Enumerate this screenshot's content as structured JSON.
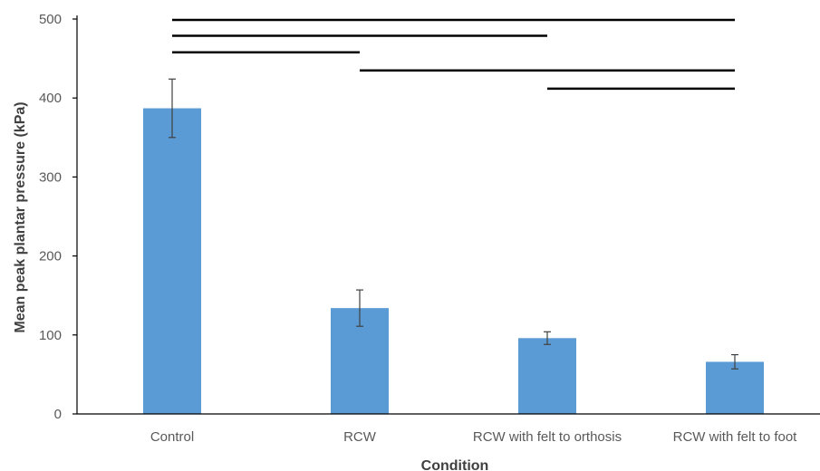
{
  "chart_data": {
    "type": "bar",
    "title": "",
    "xlabel": "Condition",
    "ylabel": "Mean peak plantar pressure (kPa)",
    "ylim": [
      0,
      500
    ],
    "yticks": [
      0,
      100,
      200,
      300,
      400,
      500
    ],
    "categories": [
      "Control",
      "RCW",
      "RCW with felt to orthosis",
      "RCW with felt to foot"
    ],
    "values": [
      387,
      134,
      96,
      66
    ],
    "error": [
      37,
      23,
      8,
      9
    ],
    "bar_color": "#5b9bd5",
    "grid": false,
    "significance_brackets": [
      {
        "from": "Control",
        "to": "RCW with felt to foot",
        "level": 500
      },
      {
        "from": "Control",
        "to": "RCW with felt to orthosis",
        "level": 480
      },
      {
        "from": "Control",
        "to": "RCW",
        "level": 459
      },
      {
        "from": "RCW",
        "to": "RCW with felt to foot",
        "level": 436
      },
      {
        "from": "RCW with felt to orthosis",
        "to": "RCW with felt to foot",
        "level": 413
      }
    ]
  }
}
